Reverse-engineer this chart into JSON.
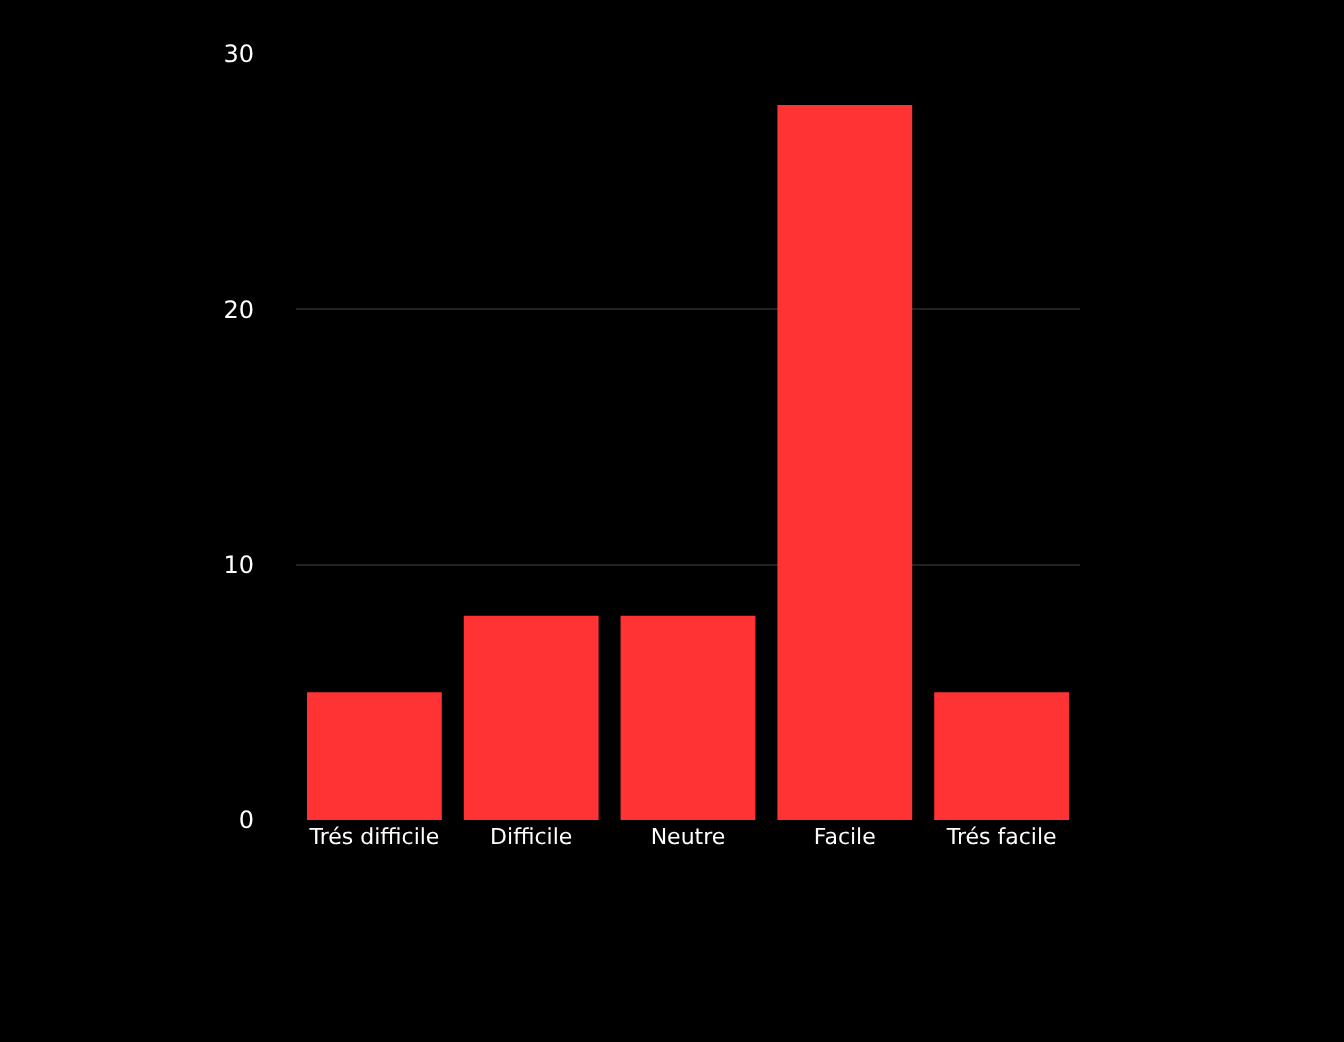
{
  "chart_data": {
    "type": "bar",
    "categories": [
      "Trés difficile",
      "Difficile",
      "Neutre",
      "Facile",
      "Trés facile"
    ],
    "values": [
      5,
      8,
      8,
      28,
      5
    ],
    "color": "#ff3333",
    "ylim": [
      0,
      30
    ],
    "yticks": [
      0,
      10,
      20,
      30
    ],
    "grid": "y"
  }
}
